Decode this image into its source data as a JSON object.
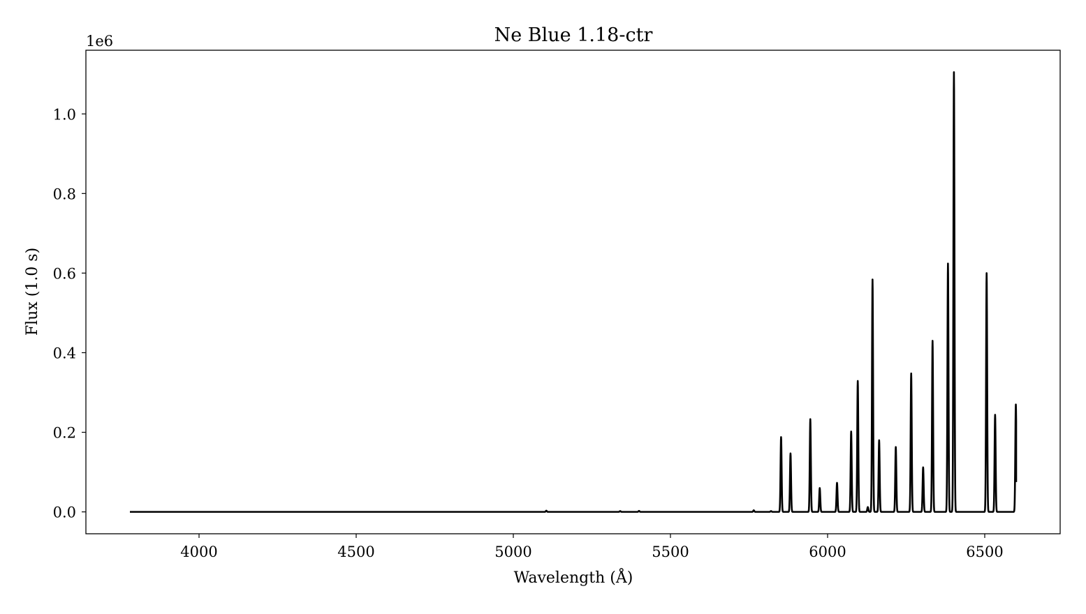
{
  "chart_data": {
    "type": "line",
    "title": "Ne Blue 1.18-ctr",
    "xlabel": "Wavelength (Å)",
    "ylabel": "Flux (1.0 s)",
    "y_offset_label": "1e6",
    "xlim": [
      3640,
      6740
    ],
    "ylim": [
      -55000,
      1160000
    ],
    "x_ticks": [
      4000,
      4500,
      5000,
      5500,
      6000,
      6500
    ],
    "y_ticks": [
      0,
      200000,
      400000,
      600000,
      800000,
      1000000
    ],
    "y_tick_labels": [
      "0.0",
      "0.2",
      "0.4",
      "0.6",
      "0.8",
      "1.0"
    ],
    "grid": false,
    "line_color": "#000000",
    "x_range": [
      3780,
      6600
    ],
    "baseline": 0,
    "final_value": 75000,
    "peaks": [
      {
        "x": 5105,
        "y": 3000
      },
      {
        "x": 5340,
        "y": 2000
      },
      {
        "x": 5400,
        "y": 2500
      },
      {
        "x": 5765,
        "y": 4000
      },
      {
        "x": 5820,
        "y": 2000
      },
      {
        "x": 5852,
        "y": 188000
      },
      {
        "x": 5882,
        "y": 147000
      },
      {
        "x": 5945,
        "y": 233000
      },
      {
        "x": 5975,
        "y": 60000
      },
      {
        "x": 6030,
        "y": 73000
      },
      {
        "x": 6075,
        "y": 202000
      },
      {
        "x": 6096,
        "y": 329000
      },
      {
        "x": 6128,
        "y": 12000
      },
      {
        "x": 6143,
        "y": 584000
      },
      {
        "x": 6164,
        "y": 180000
      },
      {
        "x": 6217,
        "y": 163000
      },
      {
        "x": 6266,
        "y": 348000
      },
      {
        "x": 6304,
        "y": 112000
      },
      {
        "x": 6334,
        "y": 430000
      },
      {
        "x": 6383,
        "y": 624000
      },
      {
        "x": 6402,
        "y": 1105000
      },
      {
        "x": 6506,
        "y": 600000
      },
      {
        "x": 6533,
        "y": 244000
      },
      {
        "x": 6599,
        "y": 270000
      }
    ]
  }
}
